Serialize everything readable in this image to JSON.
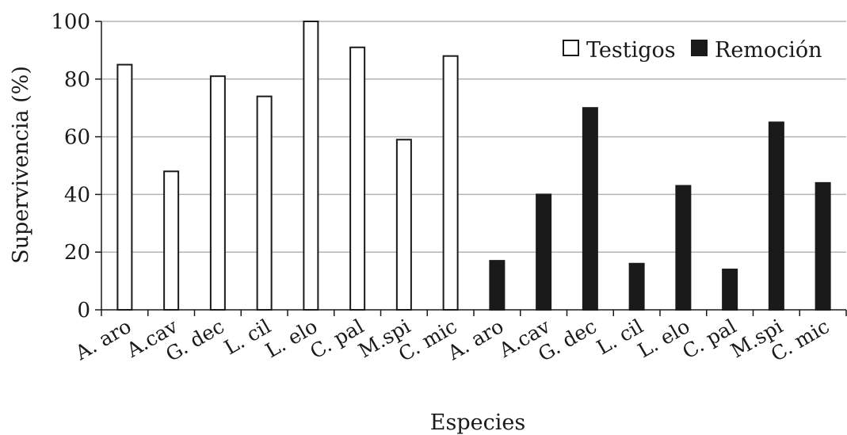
{
  "chart_data": {
    "type": "bar",
    "categories": [
      "A. aro",
      "A.cav",
      "G. dec",
      "L. cil",
      "L. elo",
      "C. pal",
      "M.spi",
      "C. mic",
      "A. aro",
      "A.cav",
      "G. dec",
      "L. cil",
      "L. elo",
      "C. pal",
      "M.spi",
      "C. mic"
    ],
    "series": [
      {
        "name": "Testigos",
        "values": [
          85,
          48,
          81,
          74,
          100,
          91,
          59,
          88,
          null,
          null,
          null,
          null,
          null,
          null,
          null,
          null
        ],
        "color": "#ffffff",
        "stroke": "#1a1a1a"
      },
      {
        "name": "Remoción",
        "values": [
          null,
          null,
          null,
          null,
          null,
          null,
          null,
          null,
          17,
          40,
          70,
          16,
          43,
          14,
          65,
          44
        ],
        "color": "#1a1a1a",
        "stroke": "#1a1a1a"
      }
    ],
    "title": "",
    "xlabel": "Especies",
    "ylabel": "Supervivencia (%)",
    "ylim": [
      0,
      100
    ],
    "yticks": [
      0,
      20,
      40,
      60,
      80,
      100
    ],
    "grid": true,
    "legend": "top-right"
  }
}
